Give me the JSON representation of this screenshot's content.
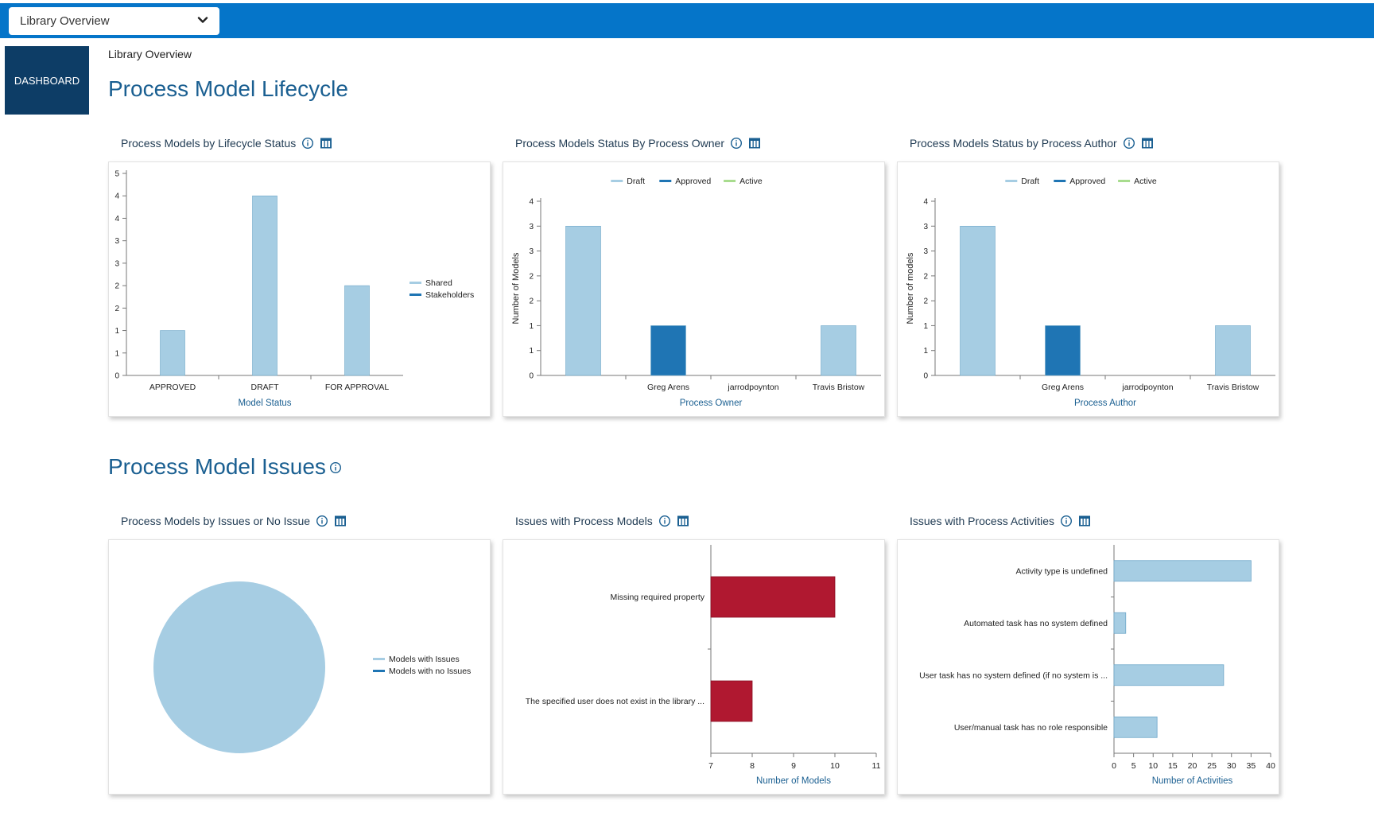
{
  "header": {
    "dropdown_label": "Library Overview"
  },
  "nav": {
    "dashboard_label": "DASHBOARD"
  },
  "page": {
    "breadcrumb": "Library Overview",
    "section1_title": "Process Model Lifecycle",
    "section2_title": "Process Model Issues"
  },
  "colors": {
    "light_blue": "#a6cde3",
    "dark_blue": "#1f75b4",
    "green": "#a8dc8e",
    "red": "#b01830",
    "title_blue": "#1a5f91",
    "topbar": "#0575c9"
  },
  "panels": {
    "lifecycle": {
      "title": "Process Models by Lifecycle Status",
      "chart_data": {
        "type": "bar",
        "categories": [
          "APPROVED",
          "DRAFT",
          "FOR APPROVAL"
        ],
        "series": [
          {
            "name": "Shared",
            "values": [
              1,
              4,
              2
            ]
          },
          {
            "name": "Stakeholders",
            "values": [
              0,
              0,
              0
            ]
          }
        ],
        "yticks": [
          "0",
          "1",
          "1",
          "2",
          "2",
          "3",
          "3",
          "4",
          "4",
          "5"
        ],
        "ylim": [
          0,
          4.5
        ],
        "xlabel": "Model Status",
        "ylabel": "",
        "legend_position": "right"
      }
    },
    "owner": {
      "title": "Process Models Status By Process Owner",
      "chart_data": {
        "type": "bar",
        "categories": [
          "",
          "Greg Arens",
          "jarrodpoynton",
          "Travis Bristow"
        ],
        "series": [
          {
            "name": "Draft",
            "values": [
              3,
              0,
              0,
              1
            ]
          },
          {
            "name": "Approved",
            "values": [
              0,
              1,
              0,
              0
            ]
          },
          {
            "name": "Active",
            "values": [
              0,
              0,
              0,
              0
            ]
          }
        ],
        "yticks": [
          "0",
          "1",
          "1",
          "2",
          "2",
          "3",
          "3",
          "4"
        ],
        "ylim": [
          0,
          3.5
        ],
        "xlabel": "Process Owner",
        "ylabel": "Number of Models",
        "legend_position": "top"
      }
    },
    "author": {
      "title": "Process Models Status by Process Author",
      "chart_data": {
        "type": "bar",
        "categories": [
          "",
          "Greg Arens",
          "jarrodpoynton",
          "Travis Bristow"
        ],
        "series": [
          {
            "name": "Draft",
            "values": [
              3,
              0,
              0,
              1
            ]
          },
          {
            "name": "Approved",
            "values": [
              0,
              1,
              0,
              0
            ]
          },
          {
            "name": "Active",
            "values": [
              0,
              0,
              0,
              0
            ]
          }
        ],
        "yticks": [
          "0",
          "1",
          "1",
          "2",
          "2",
          "3",
          "3",
          "4"
        ],
        "ylim": [
          0,
          3.5
        ],
        "xlabel": "Process Author",
        "ylabel": "Number of models",
        "legend_position": "top"
      }
    },
    "issues_pie": {
      "title": "Process Models by Issues or No Issue",
      "chart_data": {
        "type": "pie",
        "labels": [
          "Models with Issues",
          "Models with no Issues"
        ],
        "values": [
          1,
          0
        ],
        "legend_position": "right"
      }
    },
    "model_issues": {
      "title": "Issues with Process Models",
      "chart_data": {
        "type": "bar",
        "orientation": "horizontal",
        "categories": [
          "Missing required property",
          "The specified user does not exist in the library ..."
        ],
        "values": [
          10,
          8
        ],
        "xticks": [
          "7",
          "8",
          "9",
          "10",
          "11"
        ],
        "xlim": [
          7,
          11
        ],
        "xlabel": "Number of Models"
      }
    },
    "activity_issues": {
      "title": "Issues with Process Activities",
      "chart_data": {
        "type": "bar",
        "orientation": "horizontal",
        "categories": [
          "Activity type is undefined",
          "Automated task has no system defined",
          "User task has no system defined (if no system is ...",
          "User/manual task has no role responsible"
        ],
        "values": [
          35,
          3,
          28,
          11
        ],
        "xticks": [
          "0",
          "5",
          "10",
          "15",
          "20",
          "25",
          "30",
          "35",
          "40"
        ],
        "xlim": [
          0,
          40
        ],
        "xlabel": "Number of Activities"
      }
    }
  }
}
